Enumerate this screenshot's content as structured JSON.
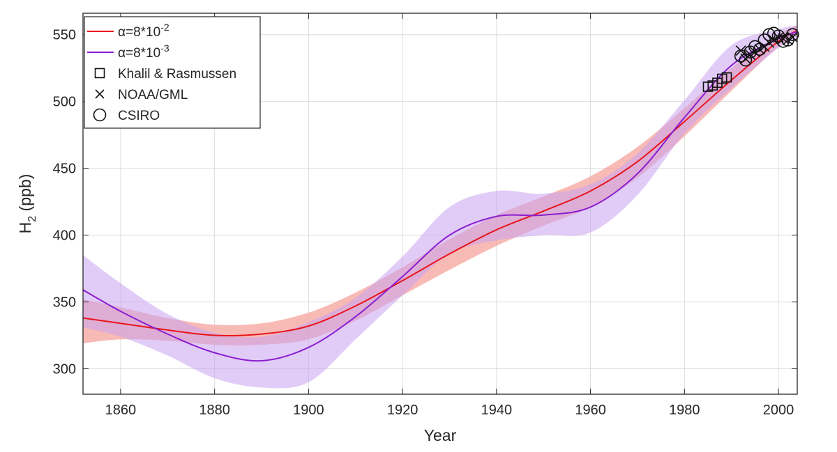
{
  "chart_data": {
    "type": "line",
    "title": "",
    "xlabel": "Year",
    "ylabel": {
      "base": "H",
      "sub": "2",
      "rest": " (ppb)"
    },
    "xlim": [
      1852,
      2004
    ],
    "ylim": [
      281,
      566
    ],
    "xticks": [
      1860,
      1880,
      1900,
      1920,
      1940,
      1960,
      1980,
      2000
    ],
    "yticks": [
      300,
      350,
      400,
      450,
      500,
      550
    ],
    "grid": true,
    "legend_position": "top-left",
    "series": [
      {
        "name": "α=8*10⁻²",
        "label_prefix": "α=8*10",
        "label_exp": "-2",
        "kind": "line",
        "color": "#e8151b",
        "band_color": "#f5a39c",
        "band_opacity": 0.75,
        "x": [
          1852,
          1860,
          1870,
          1880,
          1890,
          1900,
          1910,
          1920,
          1930,
          1940,
          1950,
          1960,
          1970,
          1980,
          1990,
          2000,
          2004
        ],
        "y": [
          338,
          334,
          329,
          325,
          326,
          332,
          347,
          366,
          386,
          404,
          418,
          433,
          455,
          485,
          516,
          545,
          553
        ],
        "lower": [
          319,
          322,
          321,
          318,
          318,
          322,
          336,
          355,
          374,
          392,
          407,
          421,
          443,
          474,
          508,
          541,
          549
        ],
        "upper": [
          352,
          346,
          338,
          333,
          334,
          342,
          357,
          376,
          397,
          415,
          429,
          444,
          466,
          495,
          525,
          550,
          557
        ]
      },
      {
        "name": "α=8*10⁻³",
        "label_prefix": "α=8*10",
        "label_exp": "-3",
        "kind": "line",
        "color": "#8a1ed0",
        "band_color": "#c9a3f0",
        "band_opacity": 0.55,
        "x": [
          1852,
          1860,
          1870,
          1880,
          1890,
          1900,
          1910,
          1920,
          1930,
          1940,
          1950,
          1960,
          1970,
          1980,
          1990,
          2000,
          2004
        ],
        "y": [
          359,
          343,
          326,
          312,
          306,
          316,
          339,
          369,
          400,
          414,
          415,
          421,
          446,
          488,
          527,
          547,
          552
        ],
        "lower": [
          331,
          324,
          310,
          293,
          286,
          290,
          322,
          355,
          386,
          396,
          400,
          402,
          430,
          476,
          510,
          540,
          547
        ],
        "upper": [
          385,
          364,
          341,
          327,
          324,
          335,
          353,
          384,
          421,
          433,
          431,
          438,
          461,
          501,
          542,
          554,
          557
        ]
      },
      {
        "name": "Khalil & Rasmussen",
        "kind": "square",
        "x": [
          1985,
          1986,
          1987,
          1988,
          1989
        ],
        "y": [
          511,
          512,
          514,
          517,
          518
        ]
      },
      {
        "name": "NOAA/GML",
        "kind": "x",
        "x": [
          1992,
          1993,
          1994,
          1995,
          1996,
          1997,
          1998,
          1999,
          2000,
          2001,
          2002,
          2003
        ],
        "y": [
          538,
          532,
          535,
          537,
          539,
          541,
          544,
          546,
          548,
          547,
          546,
          548
        ]
      },
      {
        "name": "CSIRO",
        "kind": "circle",
        "x": [
          1992,
          1993,
          1994,
          1995,
          1996,
          1997,
          1998,
          1999,
          2000,
          2001,
          2002,
          2003
        ],
        "y": [
          534,
          531,
          537,
          541,
          539,
          546,
          550,
          551,
          549,
          545,
          546,
          550
        ]
      }
    ]
  }
}
